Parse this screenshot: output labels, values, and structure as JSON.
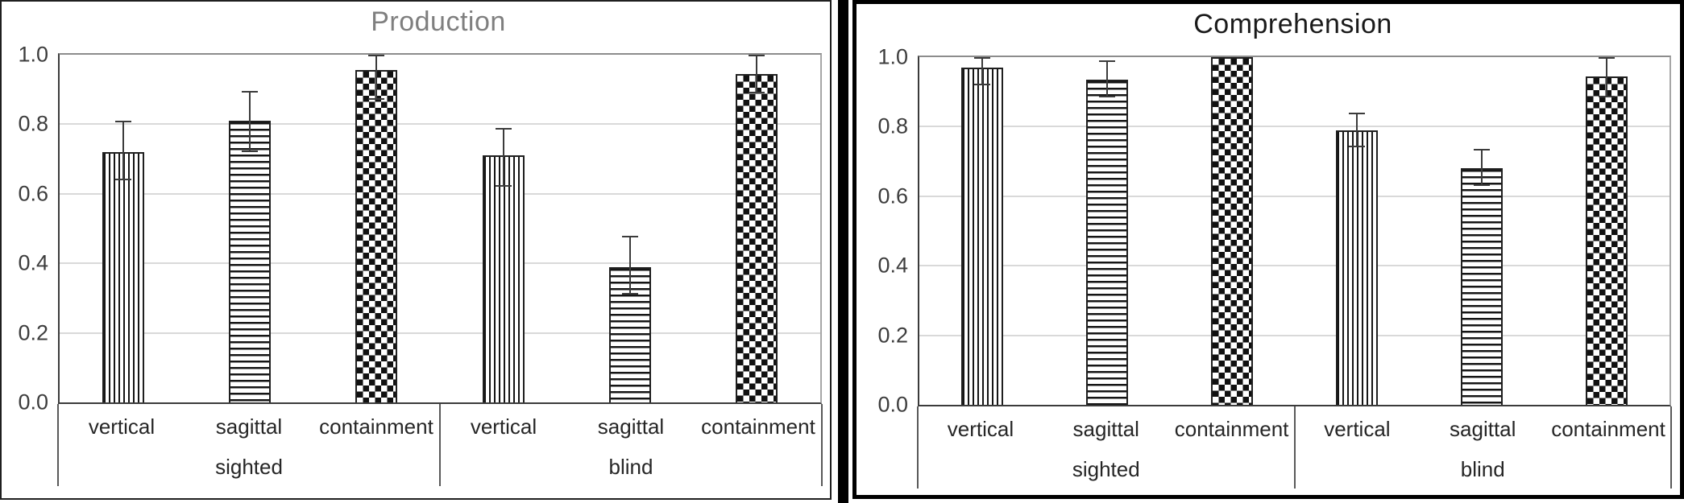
{
  "page": {
    "background": "#ffffff",
    "divider_color": "#000000",
    "left_panel_border": "#1f1f1f",
    "right_panel_border": "#000000"
  },
  "style": {
    "gridline_color": "#d9d9d9",
    "frame_color": "#8c8c8c",
    "axis_color": "#3b3b3b",
    "pattern_color": "#151515",
    "tick_label_color": "#3d3d3d",
    "category_label_color": "#262626"
  },
  "chart_data": [
    {
      "type": "bar",
      "title": "Production",
      "title_color": "#7f7f7f",
      "categories": [
        "vertical",
        "sagittal",
        "containment",
        "vertical",
        "sagittal",
        "containment"
      ],
      "group_labels": [
        "sighted",
        "blind"
      ],
      "patterns": [
        "vertical-stripes",
        "horizontal-stripes",
        "checkerboard",
        "vertical-stripes",
        "horizontal-stripes",
        "checkerboard"
      ],
      "values": [
        0.72,
        0.81,
        0.955,
        0.71,
        0.39,
        0.945
      ],
      "error_low": [
        0.64,
        0.72,
        0.87,
        0.62,
        0.31,
        0.89
      ],
      "error_high": [
        0.81,
        0.895,
        1.0,
        0.79,
        0.48,
        1.0
      ],
      "ylim": [
        0,
        1
      ],
      "yticks": [
        0,
        0.2,
        0.4,
        0.6,
        0.8,
        1.0
      ],
      "ytick_labels": [
        "0.0",
        "0.2",
        "0.4",
        "0.6",
        "0.8",
        "1.0"
      ],
      "grid": true,
      "legend": "none",
      "xlabel": "",
      "ylabel": ""
    },
    {
      "type": "bar",
      "title": "Comprehension",
      "title_color": "#1a1a1a",
      "categories": [
        "vertical",
        "sagittal",
        "containment",
        "vertical",
        "sagittal",
        "containment"
      ],
      "group_labels": [
        "sighted",
        "blind"
      ],
      "patterns": [
        "vertical-stripes",
        "horizontal-stripes",
        "checkerboard",
        "vertical-stripes",
        "horizontal-stripes",
        "checkerboard"
      ],
      "values": [
        0.97,
        0.935,
        1.0,
        0.79,
        0.68,
        0.945
      ],
      "error_low": [
        0.92,
        0.885,
        null,
        0.74,
        0.63,
        0.885
      ],
      "error_high": [
        1.0,
        0.99,
        null,
        0.84,
        0.735,
        1.0
      ],
      "ylim": [
        0,
        1
      ],
      "yticks": [
        0,
        0.2,
        0.4,
        0.6,
        0.8,
        1.0
      ],
      "ytick_labels": [
        "0.0",
        "0.2",
        "0.4",
        "0.6",
        "0.8",
        "1.0"
      ],
      "grid": true,
      "legend": "none",
      "xlabel": "",
      "ylabel": ""
    }
  ]
}
